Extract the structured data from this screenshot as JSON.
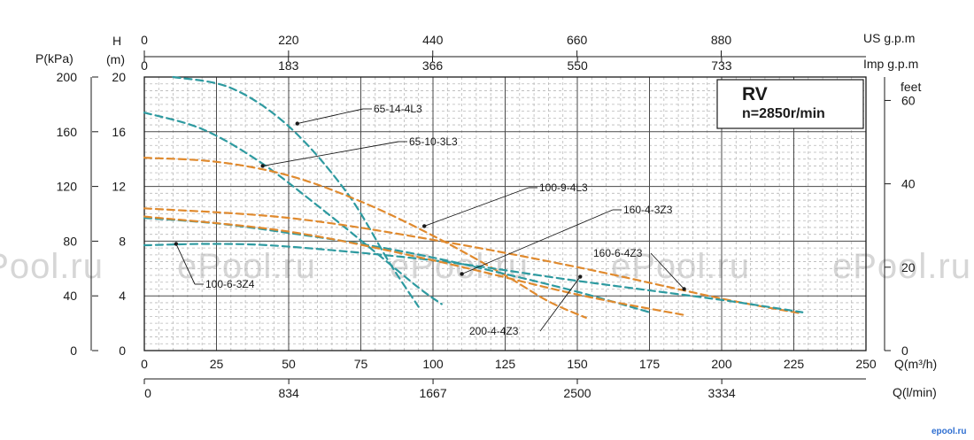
{
  "chart_data": {
    "type": "line",
    "title": "RV",
    "subtitle": "n=2850r/min",
    "watermark": "ePool.ru",
    "logo_text": "epool.ru",
    "xlim": [
      0,
      250
    ],
    "ylim_h": [
      0,
      20
    ],
    "x_axes": {
      "bottom": {
        "unit": "Q(m³/h)",
        "ticks": [
          "0",
          "25",
          "50",
          "75",
          "100",
          "125",
          "150",
          "175",
          "200",
          "225",
          "250"
        ]
      },
      "lower": {
        "unit": "Q(l/min)",
        "ticks": [
          "0",
          "834",
          "1667",
          "2500",
          "3334"
        ]
      },
      "top": {
        "unit": "US g.p.m",
        "ticks": [
          "0",
          "220",
          "440",
          "660",
          "880"
        ]
      },
      "top_inner": {
        "unit": "Imp g.p.m",
        "ticks": [
          "0",
          "183",
          "366",
          "550",
          "733"
        ]
      }
    },
    "y_axes": {
      "h": {
        "label_top": "H",
        "label_bottom": "(m)",
        "ticks": [
          "0",
          "4",
          "8",
          "12",
          "16",
          "20"
        ]
      },
      "p": {
        "label": "P(kPa)",
        "ticks": [
          "0",
          "40",
          "80",
          "120",
          "160",
          "200"
        ]
      },
      "feet": {
        "label": "feet",
        "ticks": [
          "0",
          "20",
          "40",
          "60"
        ]
      }
    },
    "colors": {
      "teal": "#2e9aa0",
      "orange": "#e08a2e",
      "grid": "#4a4a4a",
      "minor": "#b8b8b8"
    },
    "series": [
      {
        "name": "65-14-4L3",
        "color": "teal",
        "x": [
          10,
          30,
          50,
          70,
          85,
          95
        ],
        "y": [
          20,
          19.2,
          16.4,
          11.6,
          6.4,
          3.2
        ]
      },
      {
        "name": "65-10-3L3",
        "color": "teal",
        "x": [
          0,
          20,
          40,
          60,
          80,
          95,
          103
        ],
        "y": [
          17.4,
          16.2,
          13.8,
          10.6,
          7.2,
          4.6,
          3.4
        ]
      },
      {
        "name": "100-9-4L3",
        "color": "orange",
        "x": [
          0,
          25,
          50,
          75,
          100,
          125,
          140,
          153
        ],
        "y": [
          14.1,
          13.8,
          12.8,
          10.9,
          8.4,
          5.5,
          3.6,
          2.4
        ]
      },
      {
        "name": "160-4-3Z3",
        "color": "teal",
        "x": [
          0,
          25,
          50,
          75,
          100,
          125,
          150,
          175
        ],
        "y": [
          9.7,
          9.3,
          8.6,
          7.8,
          6.8,
          5.6,
          4.3,
          2.8
        ]
      },
      {
        "name": "160-6-4Z3",
        "color": "orange",
        "x": [
          0,
          50,
          100,
          150,
          200,
          228
        ],
        "y": [
          10.4,
          9.7,
          8.1,
          6.1,
          3.8,
          2.7
        ]
      },
      {
        "name": "100-6-3Z4",
        "color": "teal",
        "x": [
          0,
          25,
          50,
          100,
          150,
          200,
          228
        ],
        "y": [
          7.7,
          7.8,
          7.6,
          6.6,
          5.1,
          3.7,
          2.8
        ]
      },
      {
        "name": "200-4-4Z3",
        "color": "orange",
        "x": [
          0,
          50,
          100,
          150,
          187
        ],
        "y": [
          9.8,
          8.7,
          6.6,
          4.1,
          2.6
        ]
      }
    ],
    "annotations": [
      {
        "text": "65-14-4L3",
        "series": "65-14-4L3"
      },
      {
        "text": "65-10-3L3",
        "series": "65-10-3L3"
      },
      {
        "text": "100-9-4L3",
        "series": "100-9-4L3"
      },
      {
        "text": "160-4-3Z3",
        "series": "160-4-3Z3"
      },
      {
        "text": "160-6-4Z3",
        "series": "160-6-4Z3"
      },
      {
        "text": "100-6-3Z4",
        "series": "100-6-3Z4"
      },
      {
        "text": "200-4-4Z3",
        "series": "200-4-4Z3"
      }
    ],
    "grid": true,
    "legend": "none"
  }
}
